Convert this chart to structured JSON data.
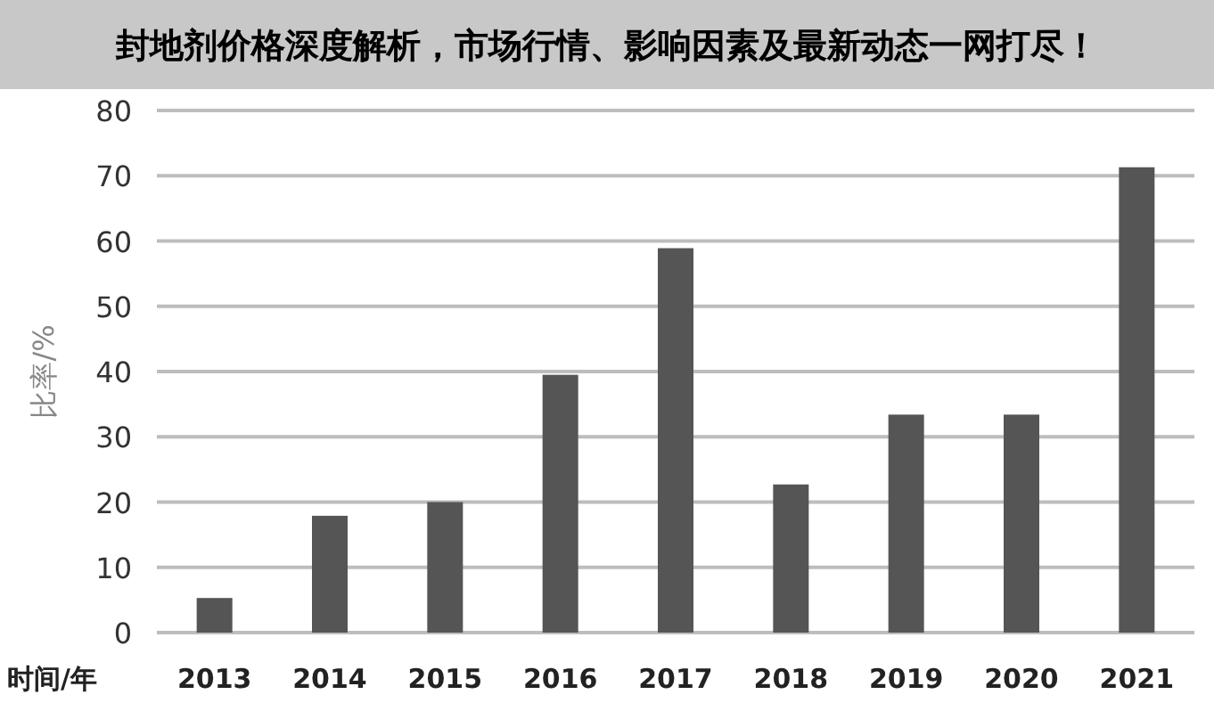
{
  "chart_data": {
    "type": "bar",
    "title": "封地剂价格深度解析，市场行情、影响因素及最新动态一网打尽！",
    "xlabel": "时间/年",
    "ylabel": "比率/%",
    "categories": [
      "2013",
      "2014",
      "2015",
      "2016",
      "2017",
      "2018",
      "2019",
      "2020",
      "2021"
    ],
    "series": [
      {
        "color": "#555555",
        "values": [
          5.3,
          17.9,
          20.0,
          39.5,
          58.9,
          22.7,
          33.4,
          33.4,
          71.3
        ]
      }
    ],
    "ylim": [
      0,
      80
    ],
    "yticks": [
      0,
      10,
      20,
      30,
      40,
      50,
      60,
      70,
      80
    ],
    "grid": "y"
  }
}
